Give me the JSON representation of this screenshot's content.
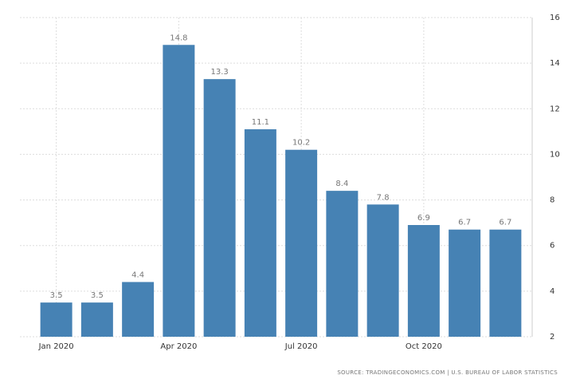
{
  "chart_data": {
    "type": "bar",
    "categories": [
      "Jan 2020",
      null,
      null,
      "Apr 2020",
      null,
      null,
      "Jul 2020",
      null,
      null,
      "Oct 2020",
      null,
      null
    ],
    "values": [
      3.5,
      3.5,
      4.4,
      14.8,
      13.3,
      11.1,
      10.2,
      8.4,
      7.8,
      6.9,
      6.7,
      6.7
    ],
    "color": "#4682b4",
    "ylim": [
      2,
      16
    ],
    "yticks": [
      2,
      4,
      6,
      8,
      10,
      12,
      14,
      16
    ],
    "grid": true,
    "y_axis_side": "right",
    "source": "SOURCE: TRADINGECONOMICS.COM | U.S. BUREAU OF LABOR STATISTICS"
  }
}
